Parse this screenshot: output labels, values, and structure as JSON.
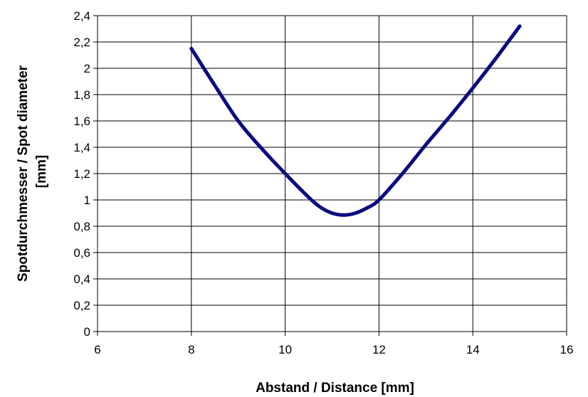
{
  "chart_data": {
    "type": "line",
    "title": "",
    "xlabel": "Abstand / Distance [mm]",
    "ylabel_line1": "Spotdurchmesser / Spot diameter",
    "ylabel_line2": "[mm]",
    "xlim": [
      6,
      16
    ],
    "ylim": [
      0,
      2.4
    ],
    "x_ticks": [
      "6",
      "8",
      "10",
      "12",
      "14",
      "16"
    ],
    "y_ticks": [
      "0",
      "0,2",
      "0,4",
      "0,6",
      "0,8",
      "1",
      "1,2",
      "1,4",
      "1,6",
      "1,8",
      "2",
      "2,2",
      "2,4"
    ],
    "grid": true,
    "legend": "none",
    "series": [
      {
        "color": "#0a0a80",
        "x": [
          8,
          8.5,
          9,
          9.5,
          10,
          10.5,
          10.75,
          11,
          11.25,
          11.5,
          11.75,
          12,
          12.5,
          13,
          13.5,
          14,
          14.5,
          15
        ],
        "y": [
          2.15,
          1.87,
          1.6,
          1.39,
          1.2,
          1.02,
          0.945,
          0.9,
          0.885,
          0.9,
          0.94,
          1.0,
          1.2,
          1.42,
          1.63,
          1.85,
          2.08,
          2.32
        ]
      }
    ]
  }
}
